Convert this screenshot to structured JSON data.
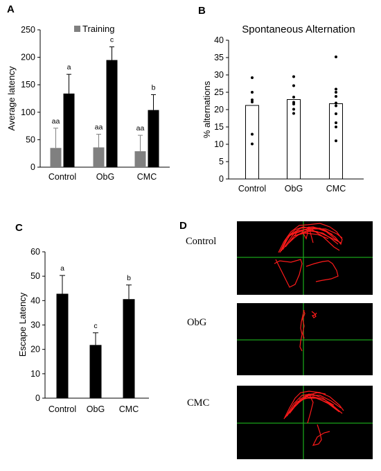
{
  "panels": {
    "A": "A",
    "B": "B",
    "C": "C",
    "D": "D"
  },
  "colors": {
    "training": "#808080",
    "test": "#000000",
    "track": "#ff1a1a",
    "crosshair": "#1aa31a",
    "arena": "#000000"
  },
  "chart_data": [
    {
      "id": "A",
      "type": "bar",
      "categories": [
        "Control",
        "ObG",
        "CMC"
      ],
      "series": [
        {
          "name": "Training",
          "values": [
            35,
            36,
            29
          ],
          "errors": [
            36,
            24,
            29
          ],
          "labels": [
            "aa",
            "aa",
            "aa"
          ]
        },
        {
          "name": "",
          "values": [
            134,
            195,
            104
          ],
          "errors": [
            35,
            24,
            28
          ],
          "labels": [
            "a",
            "c",
            "b"
          ]
        }
      ],
      "title": "",
      "xlabel": "",
      "ylabel": "Average latency",
      "ylim": [
        0,
        250
      ],
      "yticks": [
        0,
        50,
        100,
        150,
        200,
        250
      ],
      "grid": false,
      "legend": "top-center"
    },
    {
      "id": "B",
      "type": "bar",
      "categories": [
        "Control",
        "ObG",
        "CMC"
      ],
      "values": [
        21.2,
        22.9,
        21.7
      ],
      "points": [
        [
          29.2,
          25.0,
          22.8,
          22.2,
          12.9,
          10.1
        ],
        [
          29.5,
          26.9,
          23.6,
          22.1,
          21.6,
          20.1,
          18.9
        ],
        [
          35.2,
          25.9,
          25.0,
          23.8,
          21.9,
          21.1,
          18.8,
          16.2,
          15.0,
          11.0
        ]
      ],
      "title": "Spontaneous Alternation",
      "xlabel": "",
      "ylabel": "% alternations",
      "ylim": [
        0,
        40
      ],
      "yticks": [
        0,
        5,
        10,
        15,
        20,
        25,
        30,
        35,
        40
      ],
      "grid": false
    },
    {
      "id": "C",
      "type": "bar",
      "categories": [
        "Control",
        "ObG",
        "CMC"
      ],
      "values": [
        42.8,
        21.8,
        40.6
      ],
      "errors": [
        7.5,
        5.0,
        5.8
      ],
      "labels": [
        "a",
        "c",
        "b"
      ],
      "title": "",
      "xlabel": "",
      "ylabel": "Escape Latency",
      "ylim": [
        0,
        60
      ],
      "yticks": [
        0,
        10,
        20,
        30,
        40,
        50,
        60
      ],
      "grid": false
    }
  ],
  "tracks": {
    "labels": [
      "Control",
      "ObG",
      "CMC"
    ]
  }
}
